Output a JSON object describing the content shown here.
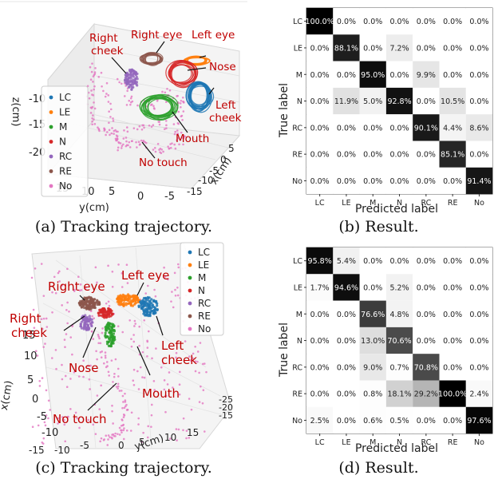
{
  "figure": {
    "captions": {
      "a": "(a) Tracking trajectory.",
      "b": "(b) Result.",
      "c": "(c) Tracking trajectory.",
      "d": "(d) Result."
    }
  },
  "colors": {
    "LC": "#1f77b4",
    "LE": "#ff7f0e",
    "M": "#2ca02c",
    "N": "#d62728",
    "RC": "#9467bd",
    "RE": "#8c564b",
    "No": "#e377c2",
    "annotation": "#c00000"
  },
  "chart_data": [
    {
      "type": "scatter3d",
      "panel": "a",
      "xlabel": "x(cm)",
      "ylabel": "y(cm)",
      "zlabel": "z(cm)",
      "x_ticks": [
        "-15",
        "-10",
        "-5",
        "0",
        "5"
      ],
      "y_ticks": [
        "15",
        "10",
        "5",
        "0",
        "-5"
      ],
      "z_ticks": [
        "-10",
        "-15",
        "-20"
      ],
      "legend": [
        "LC",
        "LE",
        "M",
        "N",
        "RC",
        "RE",
        "No"
      ],
      "annotations": [
        "Right eye",
        "Left eye",
        "Right cheek",
        "Nose",
        "Left cheek",
        "Mouth",
        "No touch"
      ],
      "legend_placement": "left"
    },
    {
      "type": "heatmap",
      "panel": "b",
      "title": "",
      "xlabel": "Predicted label",
      "ylabel": "True label",
      "categories": [
        "LC",
        "LE",
        "M",
        "N",
        "RC",
        "RE",
        "No"
      ],
      "values": [
        [
          100.0,
          0.0,
          0.0,
          0.0,
          0.0,
          0.0,
          0.0
        ],
        [
          0.0,
          88.1,
          0.0,
          7.2,
          0.0,
          0.0,
          0.0
        ],
        [
          0.0,
          0.0,
          95.0,
          0.0,
          9.9,
          0.0,
          0.0
        ],
        [
          0.0,
          11.9,
          5.0,
          92.8,
          0.0,
          10.5,
          0.0
        ],
        [
          0.0,
          0.0,
          0.0,
          0.0,
          90.1,
          4.4,
          8.6
        ],
        [
          0.0,
          0.0,
          0.0,
          0.0,
          0.0,
          85.1,
          0.0
        ],
        [
          0.0,
          0.0,
          0.0,
          0.0,
          0.0,
          0.0,
          91.4
        ]
      ],
      "value_suffix": "%"
    },
    {
      "type": "scatter3d",
      "panel": "c",
      "xlabel": "x(cm)",
      "ylabel": "y(cm)",
      "x_ticks": [
        "15",
        "10",
        "5",
        "0",
        "-5",
        "-10"
      ],
      "y_ticks": [
        "-15",
        "-10",
        "-5",
        "0",
        "5",
        "10",
        "15"
      ],
      "z_ticks": [
        "-25",
        "-20",
        "-15"
      ],
      "legend": [
        "LC",
        "LE",
        "M",
        "N",
        "RC",
        "RE",
        "No"
      ],
      "annotations": [
        "Right eye",
        "Left eye",
        "Right cheek",
        "Nose",
        "Left cheek",
        "Mouth",
        "No touch"
      ],
      "legend_placement": "top-right"
    },
    {
      "type": "heatmap",
      "panel": "d",
      "title": "",
      "xlabel": "Predicted label",
      "ylabel": "True label",
      "categories": [
        "LC",
        "LE",
        "M",
        "N",
        "RC",
        "RE",
        "No"
      ],
      "values": [
        [
          95.8,
          5.4,
          0.0,
          0.0,
          0.0,
          0.0,
          0.0
        ],
        [
          1.7,
          94.6,
          0.0,
          5.2,
          0.0,
          0.0,
          0.0
        ],
        [
          0.0,
          0.0,
          76.6,
          4.8,
          0.0,
          0.0,
          0.0
        ],
        [
          0.0,
          0.0,
          13.0,
          70.6,
          0.0,
          0.0,
          0.0
        ],
        [
          0.0,
          0.0,
          9.0,
          0.7,
          70.8,
          0.0,
          0.0
        ],
        [
          0.0,
          0.0,
          0.8,
          18.1,
          29.2,
          100.0,
          2.4
        ],
        [
          2.5,
          0.0,
          0.6,
          0.5,
          0.0,
          0.0,
          97.6
        ]
      ],
      "value_suffix": "%"
    }
  ]
}
